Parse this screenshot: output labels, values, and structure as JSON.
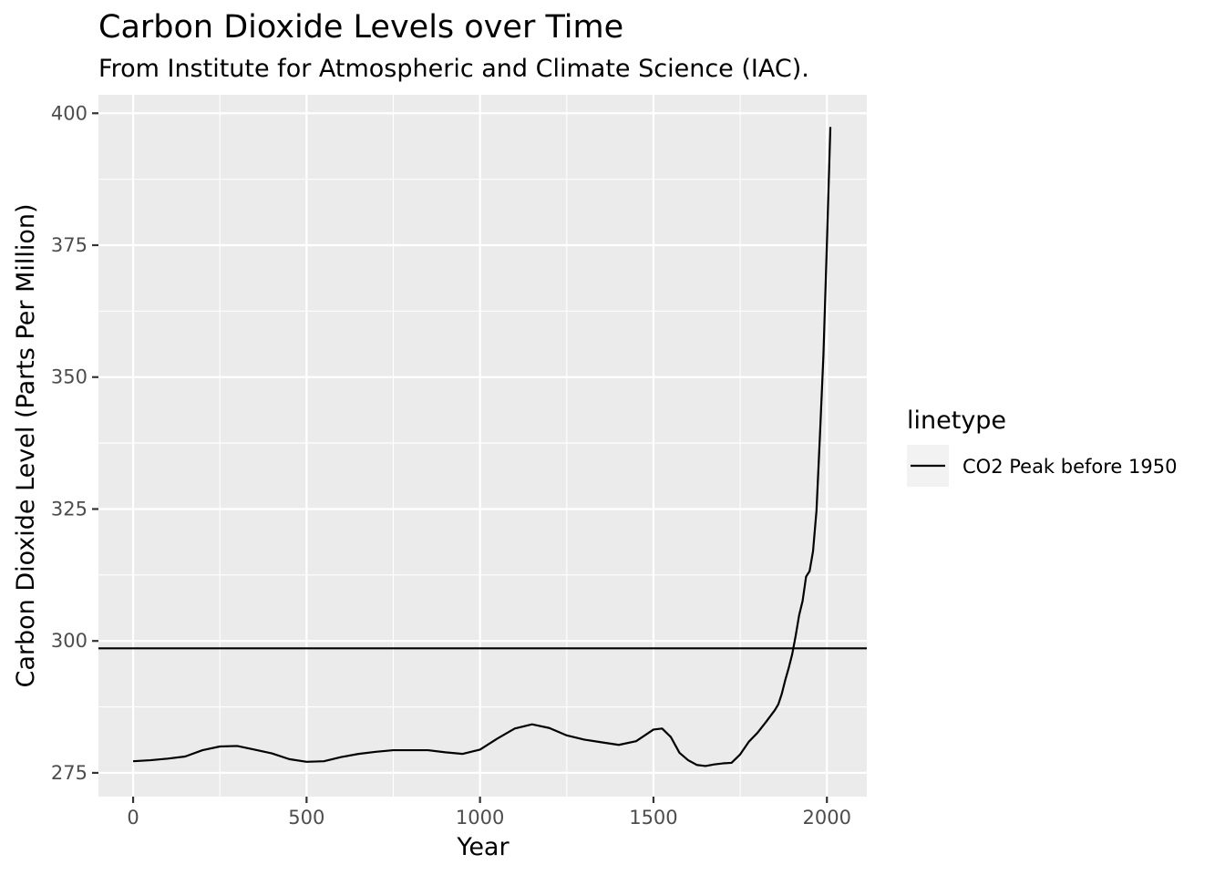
{
  "chart_data": {
    "type": "line",
    "title": "Carbon Dioxide Levels over Time",
    "subtitle": "From Institute for Atmospheric and Climate Science (IAC).",
    "xlabel": "Year",
    "ylabel": "Carbon Dioxide Level (Parts Per Million)",
    "xlim": [
      -100,
      2115
    ],
    "ylim": [
      270.5,
      403.5
    ],
    "x_ticks": [
      0,
      500,
      1000,
      1500,
      2000
    ],
    "y_ticks": [
      275,
      300,
      325,
      350,
      375,
      400
    ],
    "grid": true,
    "legend_position": "right",
    "legend_title": "linetype",
    "legend_items": [
      {
        "label": "CO2 Peak before 1950",
        "linestyle": "solid"
      }
    ],
    "hline": {
      "y": 298.6,
      "label": "CO2 Peak before 1950"
    },
    "series": [
      {
        "x": [
          0,
          50,
          100,
          150,
          200,
          250,
          300,
          350,
          400,
          450,
          500,
          550,
          600,
          650,
          700,
          750,
          800,
          850,
          900,
          950,
          1000,
          1050,
          1100,
          1150,
          1200,
          1250,
          1300,
          1350,
          1400,
          1450,
          1500,
          1525,
          1550,
          1575,
          1600,
          1625,
          1650,
          1675,
          1700,
          1725,
          1750,
          1775,
          1800,
          1825,
          1850,
          1860,
          1870,
          1880,
          1890,
          1900,
          1910,
          1920,
          1930,
          1940,
          1950,
          1960,
          1970,
          1980,
          1990,
          2000,
          2010
        ],
        "y": [
          277.2,
          277.4,
          277.7,
          278.1,
          279.3,
          280.0,
          280.1,
          279.4,
          278.7,
          277.6,
          277.1,
          277.2,
          278.0,
          278.6,
          279.0,
          279.3,
          279.3,
          279.3,
          278.9,
          278.6,
          279.4,
          281.5,
          283.4,
          284.2,
          283.5,
          282.1,
          281.3,
          280.8,
          280.3,
          281.0,
          283.2,
          283.4,
          281.8,
          278.8,
          277.4,
          276.5,
          276.3,
          276.6,
          276.8,
          276.9,
          278.5,
          280.9,
          282.6,
          284.7,
          286.9,
          288.0,
          290.0,
          292.6,
          294.9,
          297.5,
          301.0,
          304.9,
          307.6,
          312.2,
          313.2,
          317.0,
          324.7,
          339.0,
          354.2,
          375.3,
          397.4
        ]
      }
    ]
  }
}
